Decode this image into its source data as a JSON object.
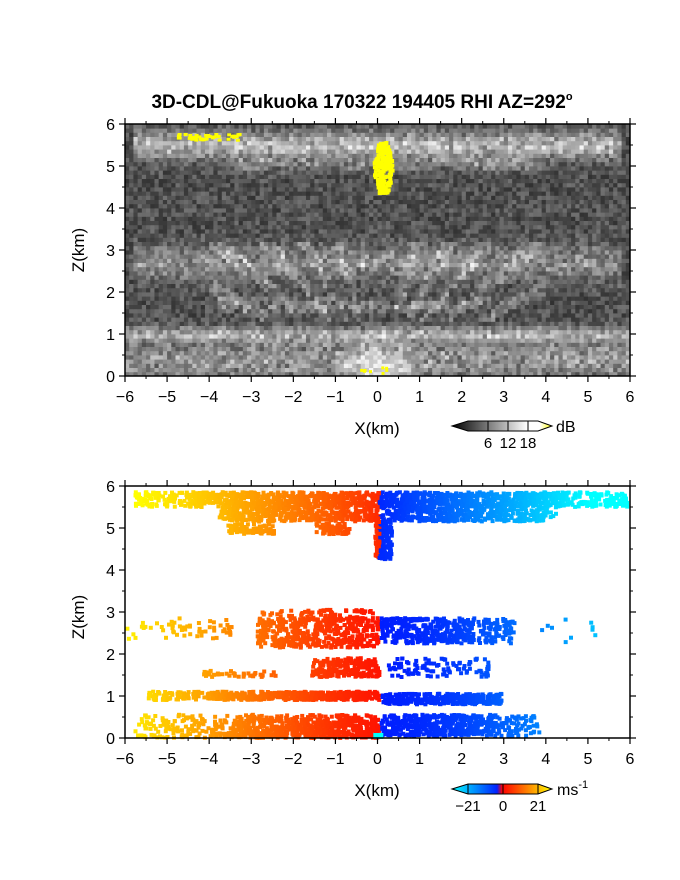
{
  "title": "3D-CDL@Fukuoka 170322 194405 RHI AZ=292",
  "title_degree": "o",
  "chart_data": [
    {
      "type": "heatmap",
      "panel": "top",
      "quantity": "backscatter intensity",
      "colormap": "gray-white-yellow",
      "xlabel": "X(km)",
      "ylabel": "Z(km)",
      "xlim": [
        -6,
        6
      ],
      "ylim": [
        0,
        6
      ],
      "x_ticks": [
        "-6",
        "-5",
        "-4",
        "-3",
        "-2",
        "-1",
        "0",
        "1",
        "2",
        "3",
        "4",
        "5",
        "6"
      ],
      "y_ticks": [
        "0",
        "1",
        "2",
        "3",
        "4",
        "5",
        "6"
      ],
      "colorbar": {
        "unit": "dB",
        "ticks": [
          "6",
          "12",
          "18"
        ],
        "range": [
          0,
          21
        ]
      },
      "features": [
        {
          "name": "cloud layer",
          "x_range": [
            -5.8,
            5.8
          ],
          "z_center": 5.5,
          "note": "bright band ~5.2–5.8 km"
        },
        {
          "name": "yellow core",
          "x_range": [
            -0.15,
            0.35
          ],
          "z_range": [
            4.4,
            5.6
          ],
          "value_db": 20
        },
        {
          "name": "yellow strip",
          "x_range": [
            -4.8,
            -3.3
          ],
          "z_center": 5.72,
          "value_db": 19
        },
        {
          "name": "layer",
          "z_center": 2.7,
          "x_range": [
            -6,
            6
          ]
        },
        {
          "name": "layer",
          "z_center": 1.7,
          "x_range": [
            -4,
            3
          ]
        },
        {
          "name": "boundary layer",
          "z_range": [
            0,
            1.1
          ],
          "x_range": [
            -6,
            6
          ]
        }
      ]
    },
    {
      "type": "heatmap",
      "panel": "bottom",
      "quantity": "radial velocity",
      "colormap": "blue-cyan / red-orange-yellow",
      "xlabel": "X(km)",
      "ylabel": "Z(km)",
      "xlim": [
        -6,
        6
      ],
      "ylim": [
        0,
        6
      ],
      "x_ticks": [
        "-6",
        "-5",
        "-4",
        "-3",
        "-2",
        "-1",
        "0",
        "1",
        "2",
        "3",
        "4",
        "5",
        "6"
      ],
      "y_ticks": [
        "0",
        "1",
        "2",
        "3",
        "4",
        "5",
        "6"
      ],
      "colorbar": {
        "unit": "ms",
        "unit_exp": "-1",
        "ticks": [
          "-21",
          "0",
          "21"
        ],
        "range": [
          -21,
          21
        ]
      },
      "features": [
        {
          "name": "upper layer",
          "z_range": [
            5.3,
            5.9
          ],
          "x_range": [
            -5.8,
            5.9
          ],
          "note": "positive (yellow) at negative X, negative (cyan) at positive X"
        },
        {
          "name": "mid layer",
          "z_range": [
            2.2,
            3.1
          ],
          "x_range": [
            -6,
            4
          ]
        },
        {
          "name": "lower layer",
          "z_range": [
            1.5,
            1.9
          ],
          "x_range": [
            -4,
            3
          ]
        },
        {
          "name": "boundary layer",
          "z_range": [
            0,
            1.1
          ],
          "x_range": [
            -5.8,
            3.8
          ]
        }
      ]
    }
  ]
}
